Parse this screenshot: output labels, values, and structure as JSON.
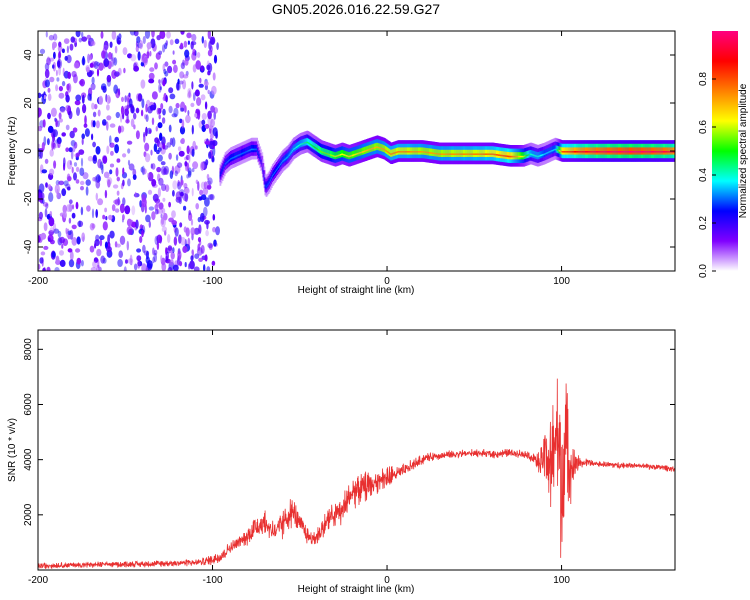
{
  "figure_title": "GN05.2026.016.22.59.G27",
  "colors": {
    "snr_line": "#e83030",
    "axes": "#000000",
    "background": "#ffffff"
  },
  "chart_data": [
    {
      "type": "heatmap",
      "title": "GN05.2026.016.22.59.G27",
      "xlabel": "Height of straight line (km)",
      "ylabel": "Frequency (Hz)",
      "xlim": [
        -200,
        165
      ],
      "ylim": [
        -50,
        50
      ],
      "x_ticks": [
        -200,
        -100,
        0,
        100
      ],
      "x_tick_labels": [
        "-200",
        "-100",
        "0",
        "100"
      ],
      "y_ticks": [
        -40,
        -20,
        0,
        20,
        40
      ],
      "y_tick_labels": [
        "-40",
        "-20",
        "0",
        "20",
        "40"
      ],
      "colorbar": {
        "label": "Normalized spectral amplitude",
        "range": [
          0,
          1
        ],
        "ticks": [
          0.0,
          0.2,
          0.4,
          0.6,
          0.8
        ],
        "tick_labels": [
          "0.0",
          "0.2",
          "0.4",
          "0.6",
          "0.8"
        ],
        "colormap": [
          "#ffffff",
          "#8000ff",
          "#0000ff",
          "#00ffff",
          "#00ff00",
          "#ffff00",
          "#ff8000",
          "#ff0000",
          "#ff0080"
        ]
      },
      "noise_region_km": [
        -200,
        -97
      ],
      "ridge_x": [
        -96,
        -93,
        -90,
        -87,
        -84,
        -81,
        -78,
        -75,
        -72,
        -70,
        -68,
        -66,
        -64,
        -62,
        -60,
        -57,
        -54,
        -50,
        -46,
        -42,
        -38,
        -34,
        -30,
        -26,
        -22,
        -18,
        -14,
        -10,
        -6,
        -2,
        2,
        6,
        10,
        20,
        30,
        40,
        50,
        60,
        70,
        78,
        82,
        86,
        90,
        93,
        96,
        100,
        110,
        120,
        130,
        140,
        150,
        160,
        165
      ],
      "ridge_freq": [
        -10,
        -5,
        -3,
        -2,
        -1,
        0,
        1,
        1,
        -5,
        -15,
        -13,
        -10,
        -8,
        -6,
        -4,
        -2,
        1,
        3,
        4,
        2,
        0,
        -1,
        -2,
        -1,
        -2,
        -1,
        0,
        1,
        2,
        1,
        -1,
        0,
        0,
        0,
        -1,
        -1,
        -1,
        -1,
        -2,
        -2,
        -1,
        -2,
        -1,
        0,
        1,
        0,
        0,
        0,
        0,
        0,
        0,
        0,
        0
      ],
      "ridge_amp": [
        0.25,
        0.3,
        0.3,
        0.32,
        0.3,
        0.3,
        0.32,
        0.3,
        0.2,
        0.3,
        0.3,
        0.3,
        0.3,
        0.32,
        0.33,
        0.35,
        0.38,
        0.4,
        0.45,
        0.5,
        0.55,
        0.55,
        0.6,
        0.62,
        0.65,
        0.65,
        0.68,
        0.7,
        0.7,
        0.72,
        0.75,
        0.75,
        0.75,
        0.72,
        0.72,
        0.74,
        0.75,
        0.78,
        0.82,
        0.6,
        0.4,
        0.4,
        0.35,
        0.35,
        0.35,
        0.8,
        0.9,
        0.95,
        0.98,
        1.0,
        0.98,
        0.95,
        0.9
      ]
    },
    {
      "type": "line",
      "xlabel": "Height of straight line (km)",
      "ylabel": "SNR (10 * v/v)",
      "xlim": [
        -200,
        165
      ],
      "ylim": [
        0,
        8700
      ],
      "x_ticks": [
        -200,
        -100,
        0,
        100
      ],
      "x_tick_labels": [
        "-200",
        "-100",
        "0",
        "100"
      ],
      "y_ticks": [
        2000,
        4000,
        6000,
        8000
      ],
      "y_tick_labels": [
        "2000",
        "4000",
        "6000",
        "8000"
      ],
      "series": [
        {
          "name": "SNR",
          "x": [
            -200,
            -180,
            -160,
            -140,
            -120,
            -105,
            -100,
            -95,
            -90,
            -85,
            -80,
            -75,
            -70,
            -67,
            -64,
            -60,
            -57,
            -54,
            -51,
            -48,
            -45,
            -42,
            -38,
            -34,
            -30,
            -26,
            -22,
            -18,
            -14,
            -10,
            -6,
            -2,
            2,
            6,
            10,
            15,
            20,
            25,
            30,
            40,
            50,
            60,
            70,
            80,
            85,
            88,
            91,
            94,
            97,
            100,
            103,
            106,
            110,
            120,
            130,
            140,
            150,
            160,
            165
          ],
          "y": [
            150,
            180,
            200,
            220,
            250,
            300,
            380,
            500,
            800,
            1000,
            1200,
            1600,
            1700,
            1500,
            1400,
            1600,
            1900,
            2100,
            1800,
            1500,
            1200,
            1100,
            1400,
            1800,
            2000,
            2100,
            2600,
            2900,
            3000,
            3100,
            3200,
            3300,
            3400,
            3500,
            3600,
            3800,
            4000,
            4100,
            4150,
            4200,
            4250,
            4200,
            4250,
            4200,
            4000,
            3800,
            4400,
            3500,
            5200,
            3000,
            4500,
            3700,
            3900,
            3850,
            3800,
            3800,
            3750,
            3700,
            3650
          ],
          "noise_amplitude": [
            150,
            150,
            150,
            150,
            150,
            200,
            250,
            300,
            300,
            300,
            400,
            600,
            700,
            600,
            600,
            700,
            800,
            700,
            600,
            500,
            400,
            400,
            500,
            600,
            700,
            800,
            800,
            800,
            700,
            700,
            600,
            600,
            500,
            400,
            350,
            300,
            250,
            200,
            200,
            200,
            200,
            200,
            200,
            200,
            300,
            800,
            1800,
            2400,
            3300,
            3800,
            3000,
            1400,
            300,
            150,
            150,
            150,
            150,
            150,
            150
          ]
        }
      ]
    }
  ]
}
